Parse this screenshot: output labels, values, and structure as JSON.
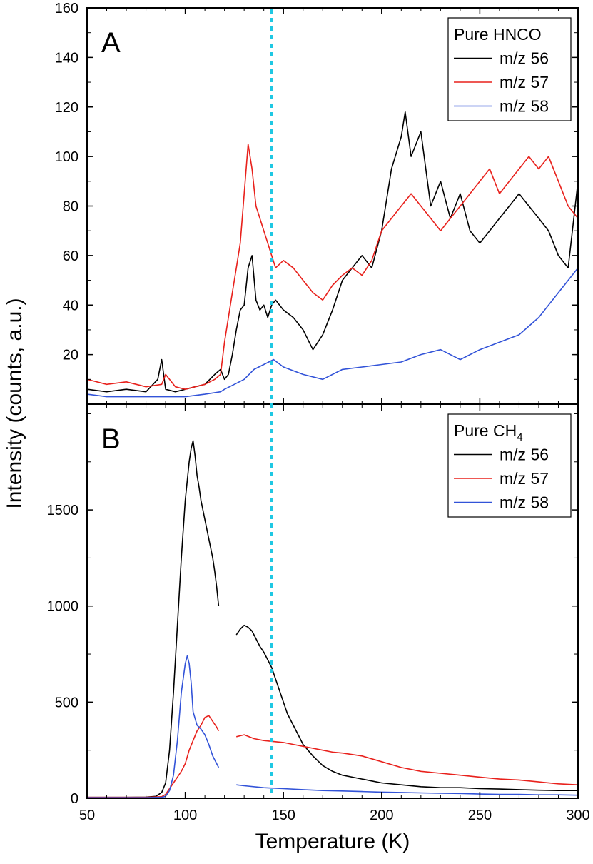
{
  "figure": {
    "ylabel": "Intensity (counts, a.u.)",
    "xlabel": "Temperature (K)",
    "marker_line": {
      "x": 144,
      "color": "#1fc8e3",
      "style": "dotted"
    },
    "x_ticks": [
      50,
      100,
      150,
      200,
      250,
      300
    ],
    "xlim": [
      50,
      300
    ]
  },
  "chart_data": [
    {
      "type": "line",
      "panel": "A",
      "ylim": [
        0,
        160
      ],
      "y_ticks": [
        20,
        40,
        60,
        80,
        100,
        120,
        140,
        160
      ],
      "legend": {
        "title": "Pure HNCO",
        "placement": "top-right"
      },
      "series": [
        {
          "name": "m/z 56",
          "color": "#000000",
          "x": [
            50,
            60,
            70,
            80,
            86,
            88,
            90,
            95,
            100,
            105,
            110,
            115,
            118,
            120,
            122,
            124,
            126,
            128,
            130,
            132,
            134,
            136,
            138,
            140,
            142,
            144,
            146,
            150,
            155,
            160,
            165,
            170,
            175,
            180,
            185,
            190,
            195,
            200,
            205,
            210,
            212,
            215,
            220,
            225,
            230,
            235,
            240,
            245,
            250,
            255,
            260,
            265,
            270,
            275,
            280,
            285,
            290,
            295,
            300
          ],
          "y": [
            6,
            5,
            6,
            5,
            10,
            18,
            6,
            5,
            6,
            7,
            8,
            12,
            14,
            10,
            12,
            20,
            30,
            38,
            40,
            55,
            60,
            42,
            38,
            40,
            35,
            40,
            42,
            38,
            35,
            30,
            22,
            28,
            38,
            50,
            55,
            60,
            55,
            70,
            95,
            108,
            118,
            100,
            110,
            80,
            90,
            75,
            85,
            70,
            65,
            70,
            75,
            80,
            85,
            80,
            75,
            70,
            60,
            55,
            90
          ]
        },
        {
          "name": "m/z 57",
          "color": "#e8211c",
          "x": [
            50,
            60,
            70,
            80,
            88,
            90,
            95,
            100,
            105,
            110,
            115,
            118,
            120,
            122,
            124,
            126,
            128,
            130,
            132,
            134,
            136,
            138,
            140,
            142,
            144,
            146,
            150,
            155,
            160,
            165,
            170,
            175,
            180,
            185,
            190,
            195,
            200,
            205,
            210,
            215,
            220,
            225,
            230,
            235,
            240,
            245,
            250,
            255,
            260,
            265,
            270,
            275,
            280,
            285,
            290,
            295,
            300
          ],
          "y": [
            10,
            8,
            9,
            7,
            8,
            12,
            7,
            6,
            7,
            8,
            10,
            12,
            25,
            35,
            45,
            55,
            65,
            85,
            105,
            95,
            80,
            75,
            70,
            65,
            60,
            55,
            58,
            55,
            50,
            45,
            42,
            48,
            52,
            55,
            52,
            58,
            70,
            75,
            80,
            85,
            80,
            75,
            70,
            75,
            80,
            85,
            90,
            95,
            85,
            90,
            95,
            100,
            95,
            100,
            90,
            80,
            75
          ]
        },
        {
          "name": "m/z 58",
          "color": "#3253d8",
          "x": [
            50,
            60,
            70,
            80,
            90,
            100,
            110,
            118,
            120,
            125,
            130,
            135,
            140,
            145,
            150,
            160,
            170,
            180,
            190,
            200,
            210,
            220,
            230,
            240,
            250,
            260,
            270,
            280,
            290,
            295,
            300
          ],
          "y": [
            4,
            3,
            3,
            3,
            3,
            3,
            4,
            5,
            6,
            8,
            10,
            14,
            16,
            18,
            15,
            12,
            10,
            14,
            15,
            16,
            17,
            20,
            22,
            18,
            22,
            25,
            28,
            35,
            45,
            50,
            55
          ]
        }
      ]
    },
    {
      "type": "line",
      "panel": "B",
      "ylim": [
        0,
        2050
      ],
      "y_ticks": [
        0,
        500,
        1000,
        1500
      ],
      "legend": {
        "title": "Pure CH",
        "title_subscript": "4",
        "placement": "top-right"
      },
      "series": [
        {
          "name": "m/z 56",
          "color": "#000000",
          "x": [
            [
              50,
              60,
              70,
              80,
              85,
              88,
              90,
              92,
              94,
              96,
              98,
              100,
              102,
              103,
              104,
              105,
              106,
              107,
              108,
              110,
              112,
              114,
              115,
              116,
              117
            ],
            [
              126,
              128,
              130,
              132,
              134,
              136,
              138,
              140,
              142,
              144,
              146,
              148,
              150,
              152,
              155,
              158,
              160,
              165,
              170,
              175,
              180,
              185,
              190,
              195,
              200,
              210,
              220,
              230,
              240,
              250,
              260,
              270,
              280,
              290,
              300
            ]
          ],
          "y": [
            [
              5,
              5,
              5,
              6,
              10,
              30,
              80,
              250,
              550,
              900,
              1250,
              1550,
              1750,
              1820,
              1860,
              1780,
              1680,
              1620,
              1550,
              1450,
              1350,
              1250,
              1180,
              1100,
              1000
            ],
            [
              850,
              880,
              900,
              890,
              870,
              830,
              790,
              760,
              720,
              680,
              620,
              560,
              500,
              440,
              380,
              320,
              280,
              220,
              170,
              140,
              120,
              110,
              100,
              90,
              80,
              70,
              60,
              55,
              55,
              50,
              48,
              45,
              42,
              40,
              40
            ]
          ]
        },
        {
          "name": "m/z 57",
          "color": "#e8211c",
          "x": [
            [
              50,
              60,
              70,
              80,
              88,
              90,
              92,
              94,
              96,
              98,
              100,
              102,
              104,
              106,
              108,
              110,
              112,
              114,
              116,
              117
            ],
            [
              126,
              130,
              135,
              140,
              145,
              150,
              155,
              160,
              165,
              170,
              175,
              180,
              190,
              200,
              210,
              220,
              230,
              240,
              250,
              260,
              270,
              280,
              290,
              300
            ]
          ],
          "y": [
            [
              5,
              5,
              5,
              5,
              8,
              20,
              50,
              80,
              110,
              140,
              180,
              250,
              300,
              350,
              380,
              420,
              430,
              400,
              370,
              350
            ],
            [
              320,
              330,
              310,
              300,
              295,
              290,
              280,
              270,
              260,
              250,
              240,
              235,
              220,
              190,
              160,
              140,
              130,
              120,
              110,
              100,
              95,
              85,
              75,
              70
            ]
          ]
        },
        {
          "name": "m/z 58",
          "color": "#3253d8",
          "x": [
            [
              50,
              60,
              70,
              80,
              88,
              90,
              92,
              94,
              96,
              98,
              100,
              101,
              102,
              103,
              104,
              106,
              108,
              110,
              112,
              114,
              116,
              117
            ],
            [
              126,
              130,
              140,
              150,
              160,
              170,
              180,
              190,
              200,
              210,
              220,
              230,
              240,
              250,
              260,
              270,
              280,
              290,
              300
            ]
          ],
          "y": [
            [
              3,
              3,
              3,
              3,
              5,
              10,
              40,
              120,
              300,
              550,
              700,
              740,
              700,
              600,
              450,
              380,
              360,
              330,
              280,
              220,
              180,
              160
            ],
            [
              70,
              65,
              55,
              50,
              45,
              40,
              38,
              35,
              32,
              30,
              28,
              26,
              25,
              22,
              20,
              20,
              18,
              18,
              16
            ]
          ]
        }
      ]
    }
  ]
}
